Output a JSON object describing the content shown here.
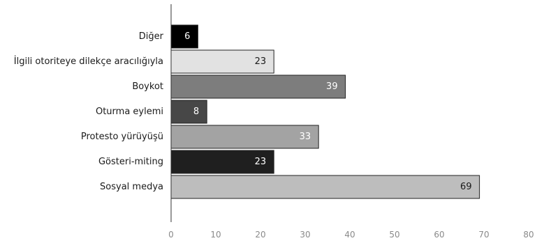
{
  "chart_data": {
    "type": "bar",
    "orientation": "horizontal",
    "title": "",
    "xlabel": "",
    "ylabel": "",
    "xlim": [
      0,
      80
    ],
    "x_ticks": [
      0,
      10,
      20,
      30,
      40,
      50,
      60,
      70,
      80
    ],
    "grid": false,
    "legend": "none",
    "categories": [
      "Diğer",
      "İlgili otoriteye dilekçe aracılığıyla",
      "Boykot",
      "Oturma eylemi",
      "Protesto yürüyüşü",
      "Gösteri-miting",
      "Sosyal medya"
    ],
    "values": [
      6,
      23,
      39,
      8,
      33,
      23,
      69
    ],
    "bar_colors": [
      "#000000",
      "#e2e2e2",
      "#7d7d7d",
      "#474747",
      "#a3a3a3",
      "#1f1f1f",
      "#bdbdbd"
    ],
    "value_label_colors": [
      "#ffffff",
      "#1a1a1a",
      "#ffffff",
      "#ffffff",
      "#ffffff",
      "#ffffff",
      "#1a1a1a"
    ]
  }
}
